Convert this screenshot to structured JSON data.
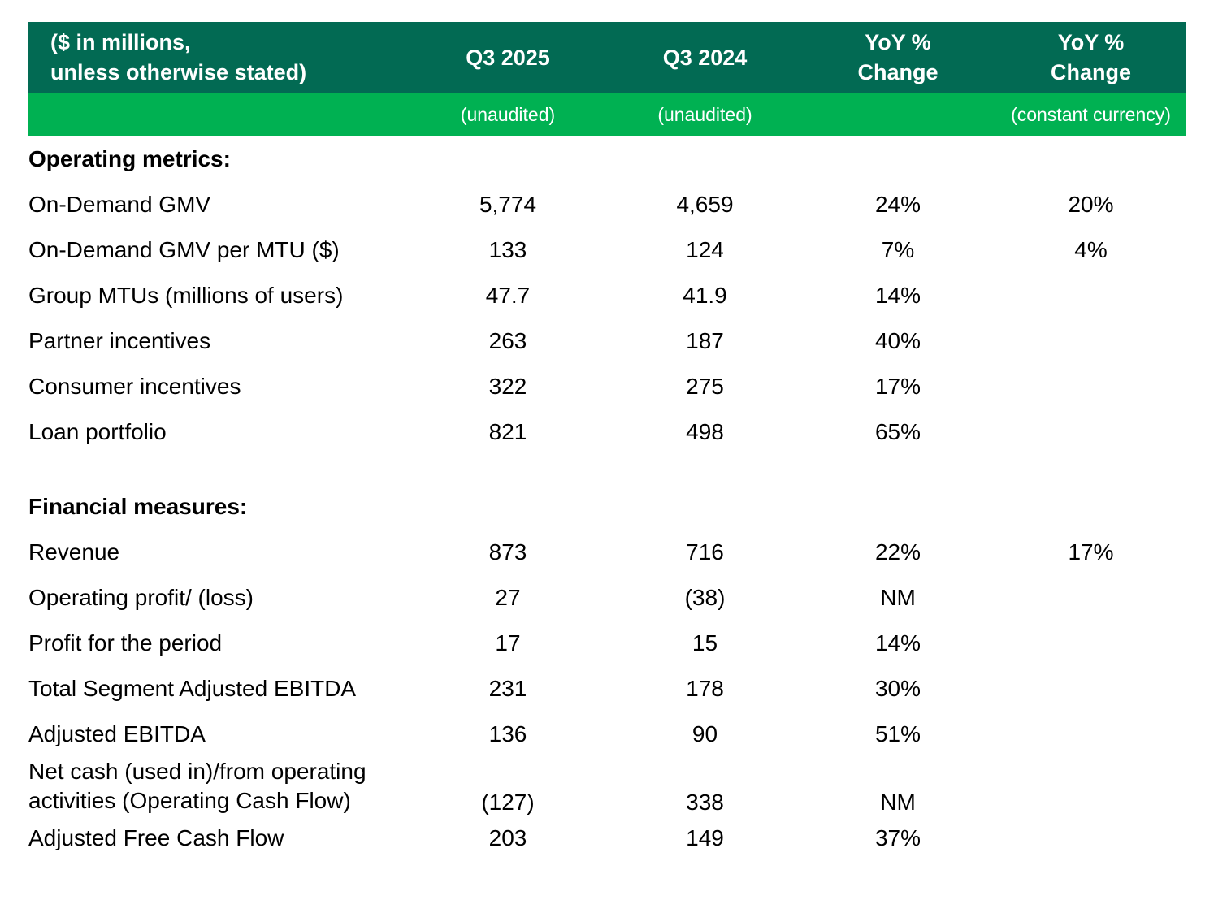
{
  "colors": {
    "header_dark": "#026A53",
    "header_light": "#00B152",
    "text_on_dark": "#ffffff",
    "body_text": "#000000"
  },
  "header": {
    "label_line1": "($ in millions,",
    "label_line2": "unless otherwise stated)",
    "col_q3_2025": "Q3 2025",
    "col_q3_2024": "Q3 2024",
    "col_yoy_line1": "YoY %",
    "col_yoy_line2": "Change",
    "col_yoy_cc_line1": "YoY %",
    "col_yoy_cc_line2": "Change"
  },
  "subheader": {
    "q3_2025_note": "(unaudited)",
    "q3_2024_note": "(unaudited)",
    "yoy_note": "",
    "yoy_cc_note": "(constant currency)"
  },
  "rows": [
    {
      "type": "section",
      "label": "Operating metrics:"
    },
    {
      "label": "On-Demand GMV",
      "v1": "5,774",
      "v2": "4,659",
      "v3": "24%",
      "v4": "20%"
    },
    {
      "label": "On-Demand GMV per MTU ($)",
      "v1": "133",
      "v2": "124",
      "v3": "7%",
      "v4": "4%"
    },
    {
      "label": "Group MTUs (millions of users)",
      "v1": "47.7",
      "v2": "41.9",
      "v3": "14%",
      "v4": ""
    },
    {
      "label": "Partner incentives",
      "v1": "263",
      "v2": "187",
      "v3": "40%",
      "v4": ""
    },
    {
      "label": "Consumer incentives",
      "v1": "322",
      "v2": "275",
      "v3": "17%",
      "v4": ""
    },
    {
      "label": "Loan portfolio",
      "v1": "821",
      "v2": "498",
      "v3": "65%",
      "v4": ""
    },
    {
      "type": "spacer"
    },
    {
      "type": "section",
      "label": "Financial measures:"
    },
    {
      "label": "Revenue",
      "v1": "873",
      "v2": "716",
      "v3": "22%",
      "v4": "17%"
    },
    {
      "label": "Operating profit/ (loss)",
      "v1": "27",
      "v2": "(38)",
      "v3": "NM",
      "v4": ""
    },
    {
      "label": "Profit for the period",
      "v1": "17",
      "v2": "15",
      "v3": "14%",
      "v4": ""
    },
    {
      "label": "Total Segment Adjusted EBITDA",
      "v1": "231",
      "v2": "178",
      "v3": "30%",
      "v4": ""
    },
    {
      "label": "Adjusted EBITDA",
      "v1": "136",
      "v2": "90",
      "v3": "51%",
      "v4": ""
    },
    {
      "label_line1": "Net cash (used in)/from operating",
      "label_line2": "activities (Operating Cash Flow)",
      "v1": "(127)",
      "v2": "338",
      "v3": "NM",
      "v4": ""
    },
    {
      "label": "Adjusted Free Cash Flow",
      "v1": "203",
      "v2": "149",
      "v3": "37%",
      "v4": ""
    }
  ]
}
